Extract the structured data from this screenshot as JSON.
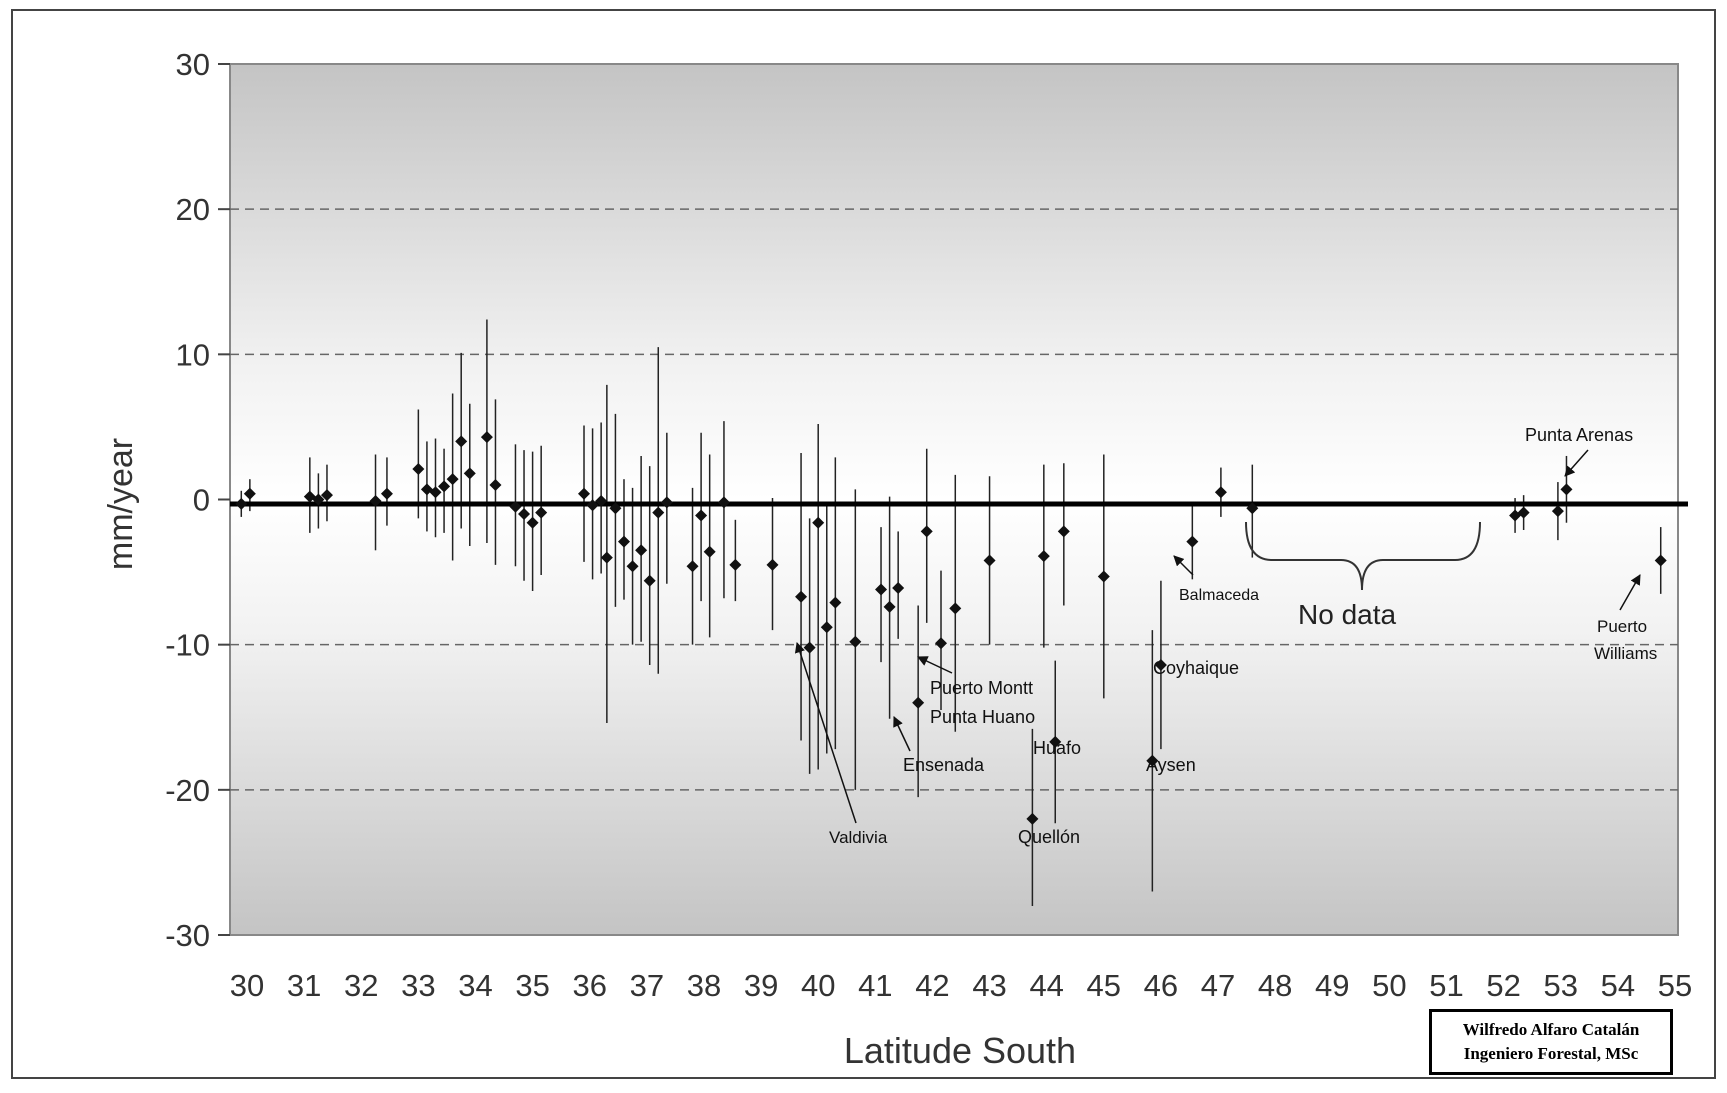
{
  "chart_data": {
    "type": "scatter",
    "title": "",
    "xlabel": "Latitude South",
    "ylabel": "mm/year",
    "ylim": [
      -30,
      30
    ],
    "yticks": [
      30,
      20,
      10,
      0,
      -10,
      -20,
      -30
    ],
    "xticks": [
      "30",
      "31",
      "32",
      "33",
      "34",
      "35",
      "36",
      "37",
      "38",
      "39",
      "40",
      "41",
      "42",
      "43",
      "44",
      "45",
      "46",
      "47",
      "48",
      "49",
      "50",
      "51",
      "52",
      "53",
      "54",
      "55"
    ],
    "grid": "dashed horizontal",
    "error_bars": true,
    "series": [
      {
        "points": [
          {
            "x": 29.9,
            "y": -0.3,
            "lo": -1.2,
            "hi": 0.6
          },
          {
            "x": 30.05,
            "y": 0.4,
            "lo": -0.8,
            "hi": 1.4
          },
          {
            "x": 31.1,
            "y": 0.2,
            "lo": -2.3,
            "hi": 2.9
          },
          {
            "x": 31.25,
            "y": 0.0,
            "lo": -2.0,
            "hi": 1.8
          },
          {
            "x": 31.4,
            "y": 0.3,
            "lo": -1.5,
            "hi": 2.4
          },
          {
            "x": 32.25,
            "y": -0.1,
            "lo": -3.5,
            "hi": 3.1
          },
          {
            "x": 32.45,
            "y": 0.4,
            "lo": -1.8,
            "hi": 2.9
          },
          {
            "x": 33.0,
            "y": 2.1,
            "lo": -1.3,
            "hi": 6.2
          },
          {
            "x": 33.15,
            "y": 0.7,
            "lo": -2.2,
            "hi": 4.0
          },
          {
            "x": 33.3,
            "y": 0.5,
            "lo": -2.6,
            "hi": 4.2
          },
          {
            "x": 33.45,
            "y": 0.9,
            "lo": -2.3,
            "hi": 3.5
          },
          {
            "x": 33.6,
            "y": 1.4,
            "lo": -4.2,
            "hi": 7.3
          },
          {
            "x": 33.75,
            "y": 4.0,
            "lo": -2.0,
            "hi": 10.1
          },
          {
            "x": 33.9,
            "y": 1.8,
            "lo": -3.2,
            "hi": 6.6
          },
          {
            "x": 34.2,
            "y": 4.3,
            "lo": -3.0,
            "hi": 12.4
          },
          {
            "x": 34.35,
            "y": 1.0,
            "lo": -4.5,
            "hi": 6.9
          },
          {
            "x": 34.7,
            "y": -0.5,
            "lo": -4.6,
            "hi": 3.8
          },
          {
            "x": 34.85,
            "y": -1.0,
            "lo": -5.6,
            "hi": 3.4
          },
          {
            "x": 35.0,
            "y": -1.6,
            "lo": -6.3,
            "hi": 3.3
          },
          {
            "x": 35.15,
            "y": -0.9,
            "lo": -5.2,
            "hi": 3.7
          },
          {
            "x": 35.9,
            "y": 0.4,
            "lo": -4.3,
            "hi": 5.1
          },
          {
            "x": 36.05,
            "y": -0.4,
            "lo": -5.5,
            "hi": 4.9
          },
          {
            "x": 36.2,
            "y": -0.1,
            "lo": -5.1,
            "hi": 5.3
          },
          {
            "x": 36.3,
            "y": -4.0,
            "lo": -15.4,
            "hi": 7.9
          },
          {
            "x": 36.45,
            "y": -0.6,
            "lo": -7.4,
            "hi": 5.9
          },
          {
            "x": 36.6,
            "y": -2.9,
            "lo": -6.9,
            "hi": 1.4
          },
          {
            "x": 36.75,
            "y": -4.6,
            "lo": -10.0,
            "hi": 0.8
          },
          {
            "x": 36.9,
            "y": -3.5,
            "lo": -9.8,
            "hi": 3.0
          },
          {
            "x": 37.05,
            "y": -5.6,
            "lo": -11.4,
            "hi": 2.3
          },
          {
            "x": 37.2,
            "y": -0.9,
            "lo": -12.0,
            "hi": 10.5
          },
          {
            "x": 37.35,
            "y": -0.2,
            "lo": -5.8,
            "hi": 4.6
          },
          {
            "x": 37.8,
            "y": -4.6,
            "lo": -10.0,
            "hi": 0.8
          },
          {
            "x": 37.95,
            "y": -1.1,
            "lo": -7.0,
            "hi": 4.6
          },
          {
            "x": 38.1,
            "y": -3.6,
            "lo": -9.5,
            "hi": 3.1
          },
          {
            "x": 38.35,
            "y": -0.2,
            "lo": -6.8,
            "hi": 5.4
          },
          {
            "x": 38.55,
            "y": -4.5,
            "lo": -7.0,
            "hi": -1.4
          },
          {
            "x": 39.2,
            "y": -4.5,
            "lo": -9.0,
            "hi": 0.1
          },
          {
            "x": 39.7,
            "y": -6.7,
            "lo": -16.6,
            "hi": 3.2
          },
          {
            "x": 39.85,
            "y": -10.2,
            "lo": -18.9,
            "hi": -1.3
          },
          {
            "x": 40.0,
            "y": -1.6,
            "lo": -18.6,
            "hi": 5.2
          },
          {
            "x": 40.15,
            "y": -8.8,
            "lo": -17.5,
            "hi": -0.3
          },
          {
            "x": 40.3,
            "y": -7.1,
            "lo": -17.2,
            "hi": 2.9
          },
          {
            "x": 40.65,
            "y": -9.8,
            "lo": -20.0,
            "hi": 0.7
          },
          {
            "x": 41.1,
            "y": -6.2,
            "lo": -11.2,
            "hi": -1.9
          },
          {
            "x": 41.25,
            "y": -7.4,
            "lo": -15.1,
            "hi": 0.2
          },
          {
            "x": 41.4,
            "y": -6.1,
            "lo": -9.6,
            "hi": -2.2
          },
          {
            "x": 41.75,
            "y": -14.0,
            "lo": -20.5,
            "hi": -7.3
          },
          {
            "x": 41.9,
            "y": -2.2,
            "lo": -8.5,
            "hi": 3.5
          },
          {
            "x": 42.15,
            "y": -9.9,
            "lo": -14.5,
            "hi": -4.9
          },
          {
            "x": 42.4,
            "y": -7.5,
            "lo": -16.0,
            "hi": 1.7
          },
          {
            "x": 43.0,
            "y": -4.2,
            "lo": -10.0,
            "hi": 1.6
          },
          {
            "x": 43.75,
            "y": -22.0,
            "lo": -28.0,
            "hi": -15.8
          },
          {
            "x": 43.95,
            "y": -3.9,
            "lo": -10.2,
            "hi": 2.4
          },
          {
            "x": 44.15,
            "y": -16.7,
            "lo": -22.3,
            "hi": -11.1
          },
          {
            "x": 44.3,
            "y": -2.2,
            "lo": -7.3,
            "hi": 2.5
          },
          {
            "x": 45.0,
            "y": -5.3,
            "lo": -13.7,
            "hi": 3.1
          },
          {
            "x": 45.85,
            "y": -18.0,
            "lo": -27.0,
            "hi": -9.0
          },
          {
            "x": 46.0,
            "y": -11.4,
            "lo": -17.2,
            "hi": -5.6
          },
          {
            "x": 46.55,
            "y": -2.9,
            "lo": -5.5,
            "hi": -0.3
          },
          {
            "x": 47.05,
            "y": 0.5,
            "lo": -1.2,
            "hi": 2.2
          },
          {
            "x": 47.6,
            "y": -0.6,
            "lo": -4.0,
            "hi": 2.4
          },
          {
            "x": 52.2,
            "y": -1.1,
            "lo": -2.3,
            "hi": 0.1
          },
          {
            "x": 52.35,
            "y": -0.9,
            "lo": -2.1,
            "hi": 0.3
          },
          {
            "x": 52.95,
            "y": -0.8,
            "lo": -2.8,
            "hi": 1.2
          },
          {
            "x": 53.1,
            "y": 0.7,
            "lo": -1.6,
            "hi": 3.0
          },
          {
            "x": 54.75,
            "y": -4.2,
            "lo": -6.5,
            "hi": -1.9
          }
        ]
      }
    ],
    "annotations": [
      {
        "text": "Punta Arenas"
      },
      {
        "text": "Balmaceda"
      },
      {
        "text": "No data"
      },
      {
        "text": "Coyhaique"
      },
      {
        "text": "Puerto Montt"
      },
      {
        "text": "Punta Huano"
      },
      {
        "text": "Huafo"
      },
      {
        "text": "Ensenada"
      },
      {
        "text": "Aysen"
      },
      {
        "text": "Valdivia"
      },
      {
        "text": "Quellón"
      },
      {
        "text": "Puerto"
      },
      {
        "text": "Williams"
      }
    ]
  },
  "credit": {
    "line1": "Wilfredo Alfaro Catalán",
    "line2": "Ingeniero Forestal, MSc"
  }
}
